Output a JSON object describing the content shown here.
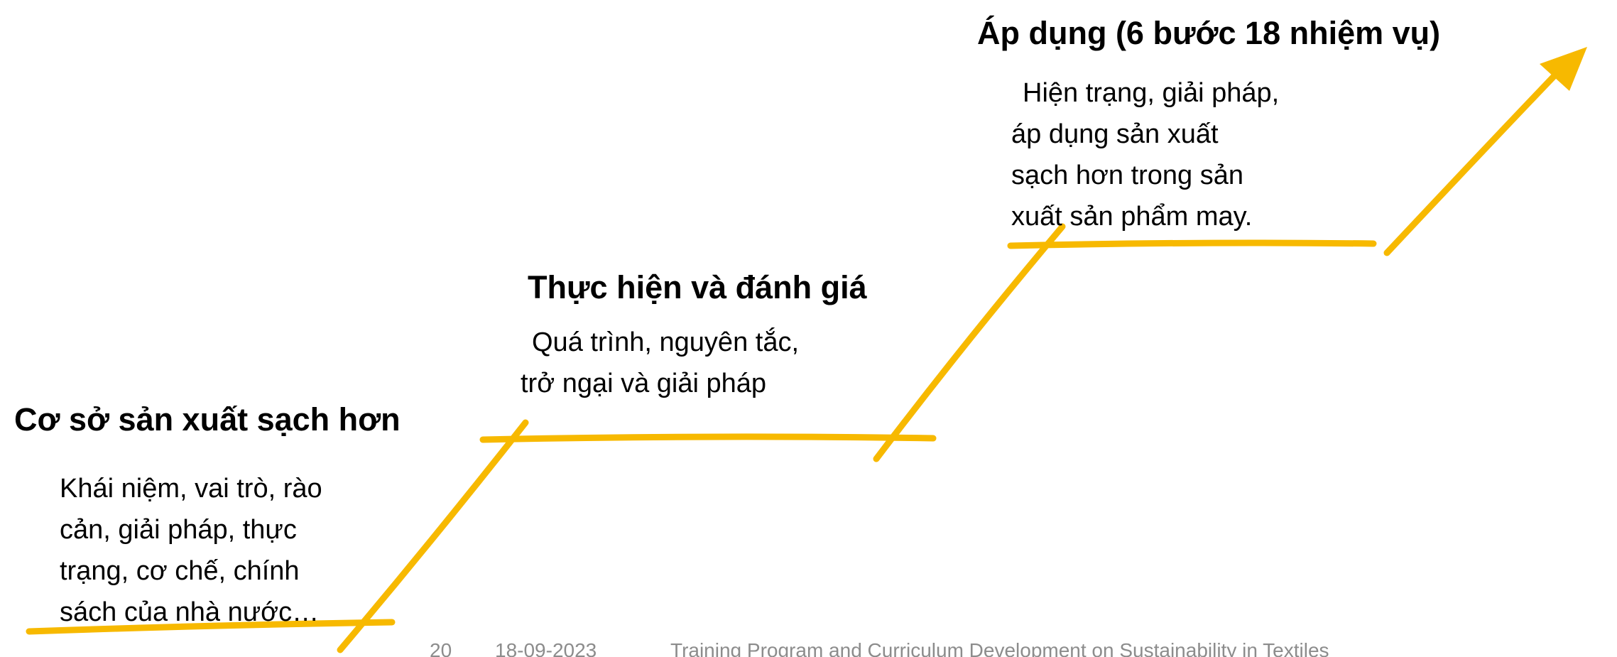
{
  "steps": [
    {
      "title": "Cơ sở sản xuất sạch hơn",
      "description": [
        "Khái niệm, vai trò, rào",
        "cản, giải pháp, thực",
        "trạng, cơ chế, chính",
        "sách của nhà nước…"
      ]
    },
    {
      "title": "Thực hiện và đánh giá",
      "description": [
        "Quá trình, nguyên tắc,",
        "trở ngại và giải pháp"
      ]
    },
    {
      "title": "Áp dụng (6 bước 18 nhiệm vụ)",
      "description": [
        "Hiện trạng, giải pháp,",
        "áp dụng sản xuất",
        "sạch hơn trong sản",
        "xuất sản phẩm may."
      ]
    }
  ],
  "footer": {
    "page_number": "20",
    "date": "18-09-2023",
    "text": "Training Program and Curriculum Development on Sustainability in Textiles"
  }
}
